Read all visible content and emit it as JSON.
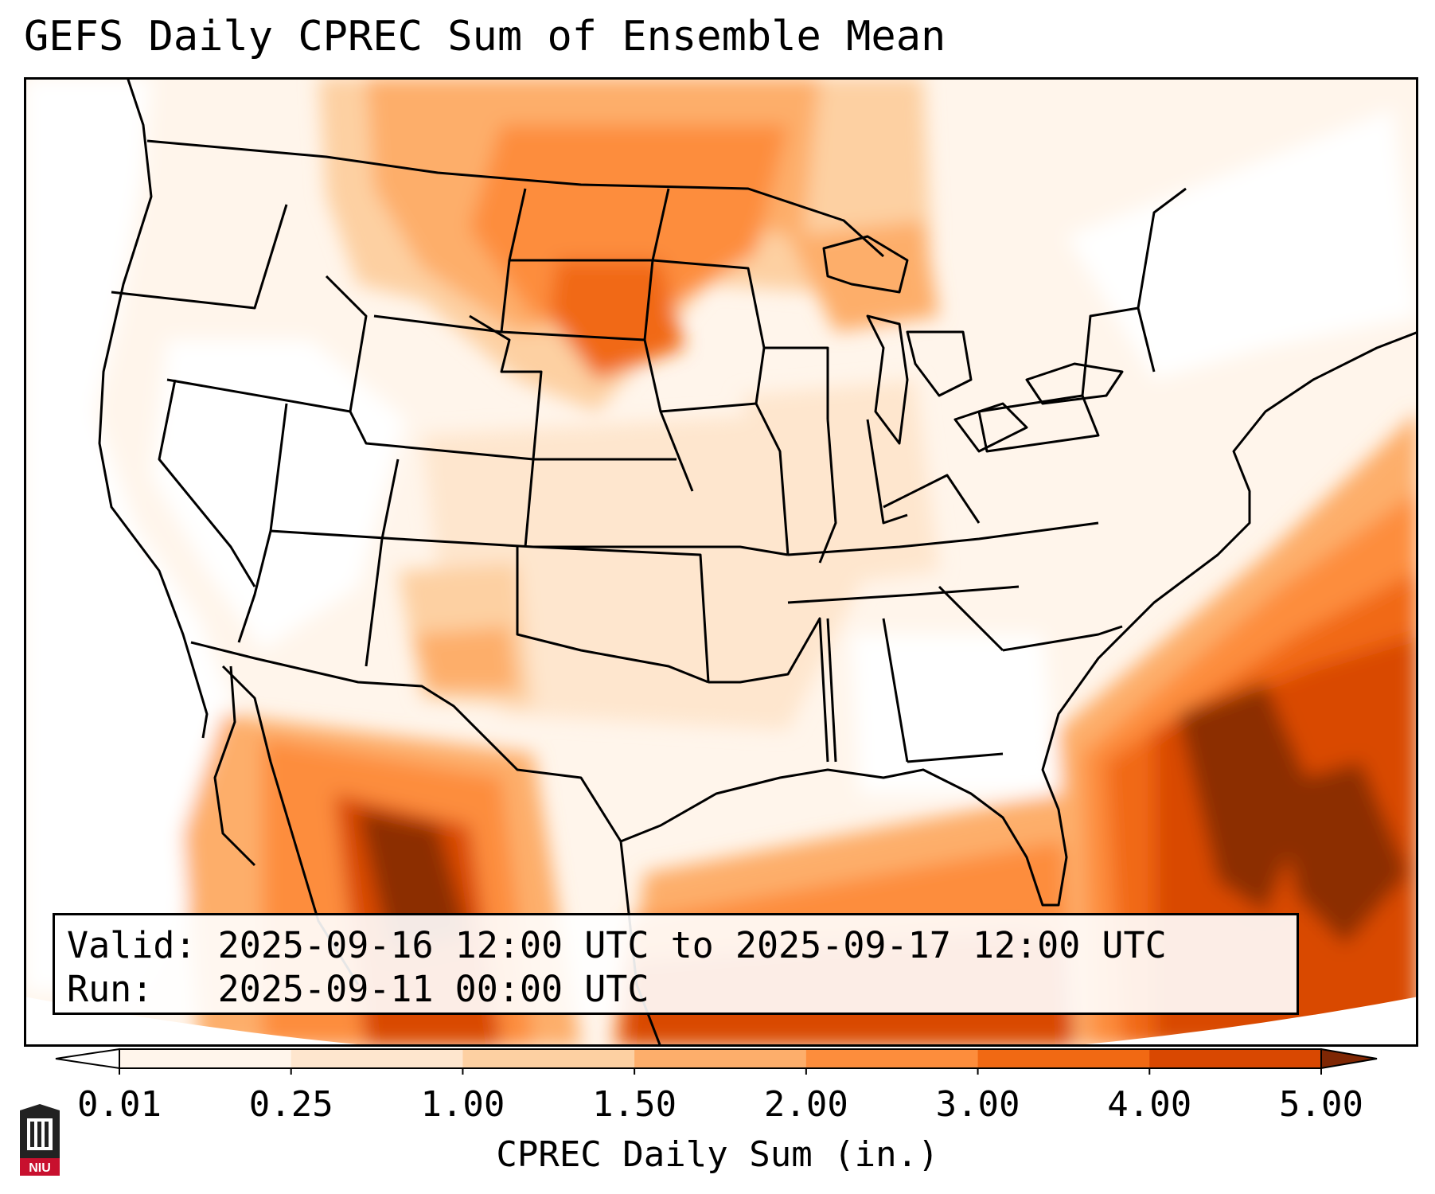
{
  "title": "GEFS Daily CPREC Sum of Ensemble Mean",
  "info_box": {
    "valid": "Valid: 2025-09-16 12:00 UTC to 2025-09-17 12:00 UTC",
    "run": "Run:   2025-09-11 00:00 UTC"
  },
  "colorbar": {
    "label": "CPREC Daily Sum (in.)",
    "ticks": [
      "0.01",
      "0.25",
      "1.00",
      "1.50",
      "2.00",
      "3.00",
      "4.00",
      "5.00"
    ],
    "colors": [
      "#fff5eb",
      "#fee6ce",
      "#fdd0a2",
      "#fdae6b",
      "#fd8d3c",
      "#f16913",
      "#d94801",
      "#8c2d04"
    ],
    "under_color": "#ffffff",
    "over_color": "#7f2704"
  },
  "map": {
    "region": "CONUS",
    "precip_regions": [
      {
        "name": "southeast-atlantic-gulf-stream",
        "level": 7
      },
      {
        "name": "off-carolinas",
        "level": 6
      },
      {
        "name": "western-gulf-of-mexico",
        "level": 5
      },
      {
        "name": "sierra-madre-occidental",
        "level": 7
      },
      {
        "name": "northern-plains",
        "level": 4
      },
      {
        "name": "nebraska-south-dakota",
        "level": 4
      },
      {
        "name": "upper-midwest",
        "level": 3
      },
      {
        "name": "new-mexico-arizona",
        "level": 3
      },
      {
        "name": "montana",
        "level": 3
      },
      {
        "name": "eastern-pacific-offshore",
        "level": 1
      }
    ]
  },
  "logo": {
    "text": "NIU"
  }
}
